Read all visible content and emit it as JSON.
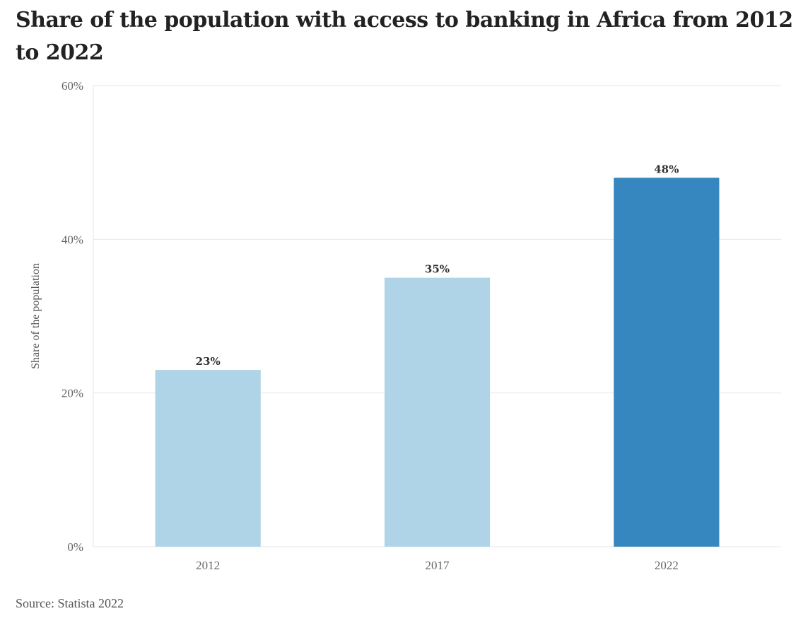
{
  "title": "Share of the population with access to banking in Africa from 2012 to 2022",
  "source": "Source: Statista 2022",
  "chart_data": {
    "type": "bar",
    "title": "Share of the population with access to banking in Africa from 2012 to 2022",
    "categories": [
      "2012",
      "2017",
      "2022"
    ],
    "values": [
      23,
      35,
      48
    ],
    "value_labels": [
      "23%",
      "35%",
      "48%"
    ],
    "colors": [
      "#b0d4e7",
      "#b0d4e7",
      "#3686bf"
    ],
    "xlabel": "",
    "ylabel": "Share of the population",
    "ylim": [
      0,
      60
    ],
    "yticks": [
      0,
      20,
      40,
      60
    ],
    "ytick_labels": [
      "0%",
      "20%",
      "40%",
      "60%"
    ],
    "grid": true,
    "gridline_color": "#e6e6e6"
  }
}
